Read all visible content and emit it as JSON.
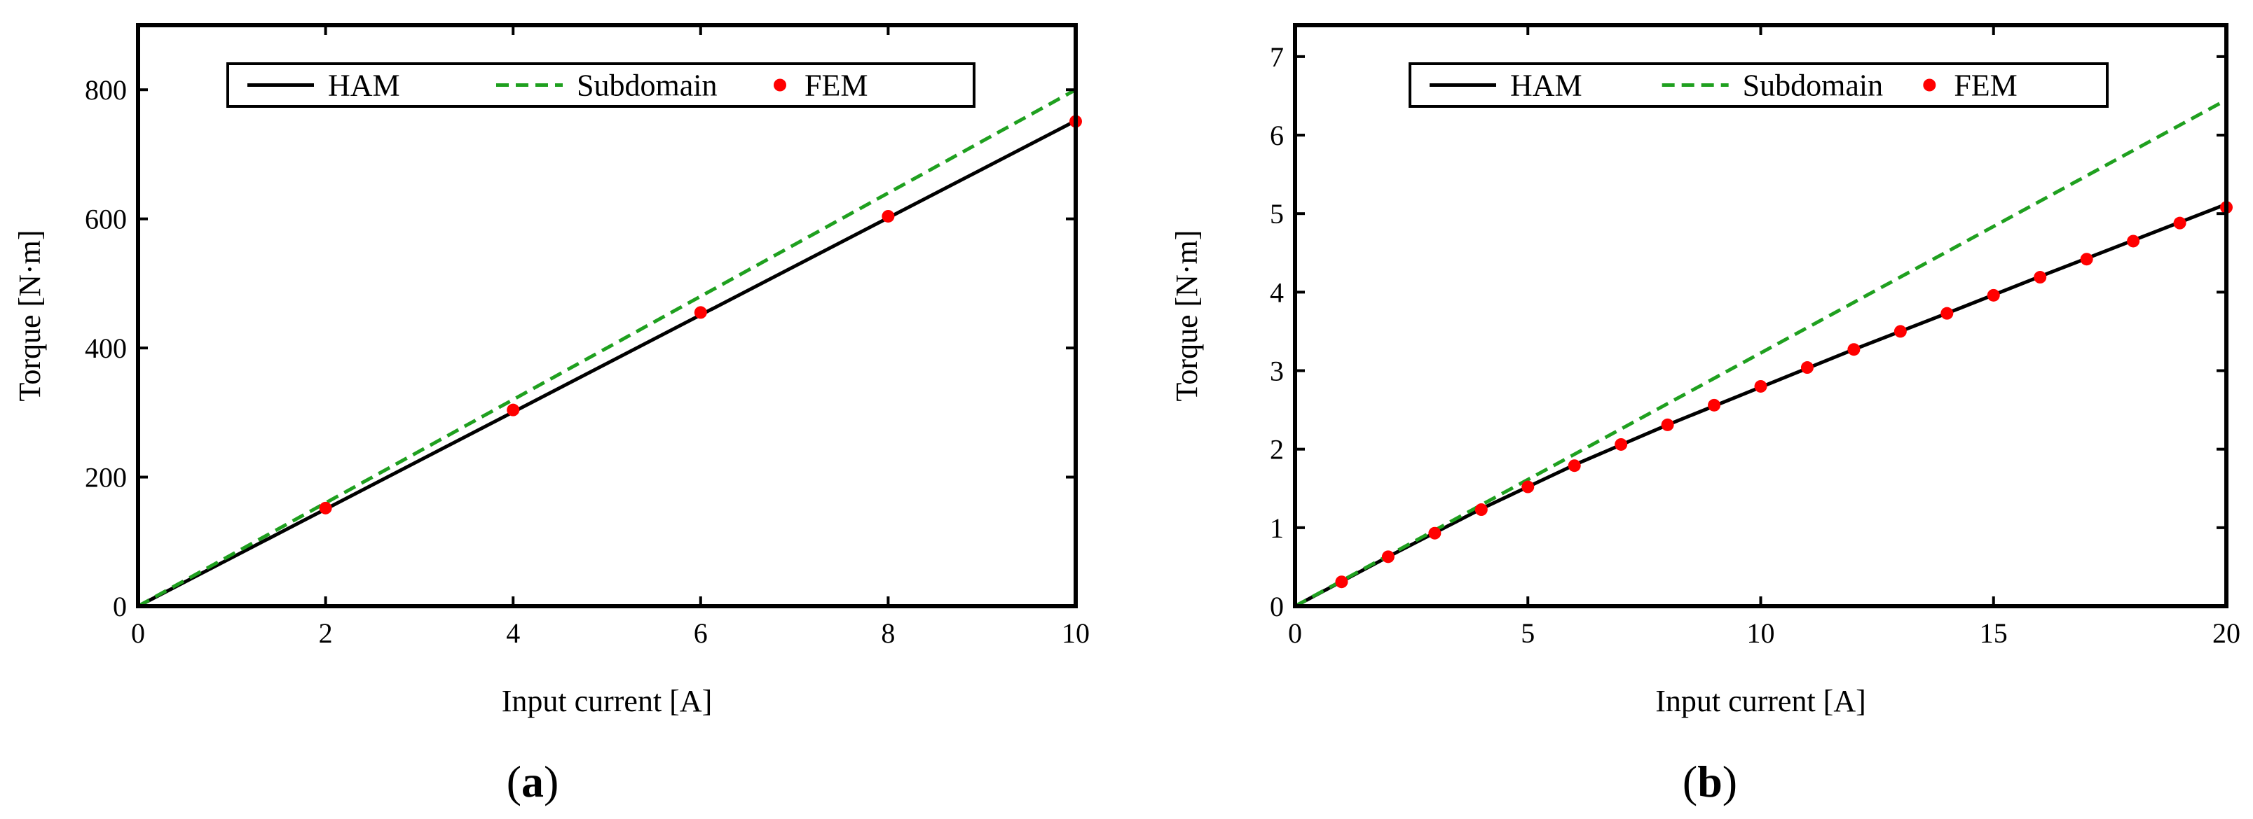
{
  "chart_data": [
    {
      "type": "line",
      "panel_label": {
        "open": "(",
        "letter": "a",
        "close": ")"
      },
      "title": "",
      "xlabel": "Input current [A]",
      "ylabel": "Torque [N·m]",
      "xlim": [
        0,
        10
      ],
      "ylim": [
        0,
        900
      ],
      "xticks": [
        0,
        2,
        4,
        6,
        8,
        10
      ],
      "yticks": [
        0,
        200,
        400,
        600,
        800
      ],
      "grid": false,
      "legend": {
        "placement": "top-center",
        "entries": [
          "HAM",
          "Subdomain",
          "FEM"
        ]
      },
      "series": [
        {
          "name": "HAM",
          "style": "solid",
          "color": "#000000",
          "x": [
            0,
            10
          ],
          "y": [
            0,
            752
          ]
        },
        {
          "name": "Subdomain",
          "style": "dashed",
          "color": "#1fa01f",
          "x": [
            0,
            10
          ],
          "y": [
            0,
            800
          ]
        },
        {
          "name": "FEM",
          "style": "markers",
          "color": "#ff0000",
          "x": [
            2,
            4,
            6,
            8,
            10
          ],
          "y": [
            152,
            304,
            455,
            604,
            751
          ]
        }
      ]
    },
    {
      "type": "line",
      "panel_label": {
        "open": "(",
        "letter": "b",
        "close": ")"
      },
      "title": "",
      "xlabel": "Input current [A]",
      "ylabel": "Torque [N·m]",
      "xlim": [
        0,
        20
      ],
      "ylim": [
        0,
        7.4
      ],
      "xticks": [
        0,
        5,
        10,
        15,
        20
      ],
      "yticks": [
        0,
        1,
        2,
        3,
        4,
        5,
        6,
        7
      ],
      "grid": false,
      "legend": {
        "placement": "top-center",
        "entries": [
          "HAM",
          "Subdomain",
          "FEM"
        ]
      },
      "series": [
        {
          "name": "HAM",
          "style": "solid",
          "color": "#000000",
          "x": [
            0,
            2,
            4,
            6,
            8,
            10,
            12,
            14,
            16,
            18,
            20
          ],
          "y": [
            0,
            0.63,
            1.24,
            1.8,
            2.31,
            2.79,
            3.27,
            3.73,
            4.2,
            4.66,
            5.12
          ]
        },
        {
          "name": "Subdomain",
          "style": "dashed",
          "color": "#1fa01f",
          "x": [
            0,
            20
          ],
          "y": [
            0,
            6.45
          ]
        },
        {
          "name": "FEM",
          "style": "markers",
          "color": "#ff0000",
          "x": [
            1,
            2,
            3,
            4,
            5,
            6,
            7,
            8,
            9,
            10,
            11,
            12,
            13,
            14,
            15,
            16,
            17,
            18,
            19,
            20
          ],
          "y": [
            0.31,
            0.63,
            0.93,
            1.23,
            1.52,
            1.79,
            2.06,
            2.31,
            2.56,
            2.8,
            3.04,
            3.27,
            3.5,
            3.73,
            3.96,
            4.19,
            4.42,
            4.65,
            4.88,
            5.08
          ]
        }
      ]
    }
  ]
}
